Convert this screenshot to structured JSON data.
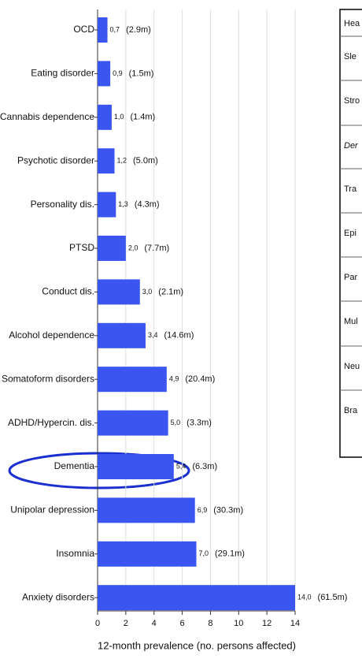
{
  "chart_data": {
    "type": "barh",
    "categories": [
      "OCD",
      "Eating disorder",
      "Cannabis dependence",
      "Psychotic disorder",
      "Personality dis.",
      "PTSD",
      "Conduct dis.",
      "Alcohol dependence",
      "Somatoform disorders",
      "ADHD/Hypercin. dis.",
      "Dementia",
      "Unipolar depression",
      "Insomnia",
      "Anxiety disorders"
    ],
    "values": [
      0.7,
      0.9,
      1.0,
      1.2,
      1.3,
      2.0,
      3.0,
      3.4,
      4.9,
      5.0,
      5.4,
      6.9,
      7.0,
      14.0
    ],
    "value_labels": [
      "0,7",
      "0,9",
      "1,0",
      "1,2",
      "1,3",
      "2,0",
      "3,0",
      "3,4",
      "4,9",
      "5,0",
      "5,4",
      "6,9",
      "7,0",
      "14,0"
    ],
    "count_labels": [
      "(2.9m)",
      "(1.5m)",
      "(1.4m)",
      "(5.0m)",
      "(4.3m)",
      "(7.7m)",
      "(2.1m)",
      "(14.6m)",
      "(20.4m)",
      "(3.3m)",
      "(6.3m)",
      "(30.3m)",
      "(29.1m)",
      "(61.5m)"
    ],
    "color": "#3a55f0",
    "xlabel": "12-month prevalence (no. persons affected)",
    "xlim": [
      0,
      14
    ],
    "xticks": [
      0,
      2,
      4,
      6,
      8,
      10,
      12,
      14
    ],
    "grid": true
  },
  "side_table": {
    "rows": [
      "Hea",
      "Sle",
      "Stro",
      "Der",
      "Tra",
      "Epi",
      "Par",
      "Mul",
      "Neu",
      "Bra"
    ]
  }
}
